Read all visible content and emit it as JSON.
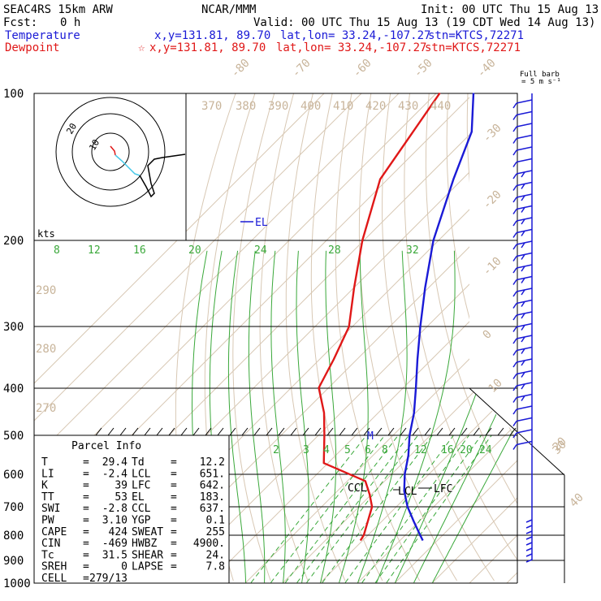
{
  "header": {
    "model": "SEAC4RS 15km ARW",
    "org": "NCAR/MMM",
    "init": "Init: 00 UTC Thu 15 Aug 13",
    "fcst_label": "Fcst:",
    "fcst_value": "0 h",
    "valid": "Valid: 00 UTC Thu 15 Aug 13 (19 CDT Wed 14 Aug 13)",
    "temp_label": "Temperature",
    "temp_xy": "x,y=131.81, 89.70",
    "temp_latlon": "lat,lon= 33.24,-107.27",
    "temp_stn": "stn=KTCS,72271",
    "dew_label": "Dewpoint",
    "dew_xy": "x,y=131.81, 89.70",
    "dew_latlon": "lat,lon= 33.24,-107.27",
    "dew_stn": "stn=KTCS,72271",
    "dew_star": "☆"
  },
  "wind_key": {
    "line1": "Full barb",
    "line2": "= 5 m s⁻¹"
  },
  "hodograph": {
    "unit_label": "kts",
    "ring_labels": [
      "10",
      "20"
    ]
  },
  "parcel_info": {
    "title": "Parcel Info",
    "rows": [
      [
        "T",
        "=",
        "29.4",
        "Td",
        "=",
        "12.2"
      ],
      [
        "LI",
        "=",
        "-2.4",
        "LCL",
        "=",
        "651."
      ],
      [
        "K",
        "=",
        "39",
        "LFC",
        "=",
        "642."
      ],
      [
        "TT",
        "=",
        "53",
        "EL",
        "=",
        "183."
      ],
      [
        "SWI",
        "=",
        "-2.8",
        "CCL",
        "=",
        "637."
      ],
      [
        "PW",
        "=",
        "3.10",
        "YGP",
        "=",
        "0.1"
      ],
      [
        "CAPE",
        "=",
        "424",
        "SWEAT",
        "=",
        "255"
      ],
      [
        "CIN",
        "=",
        "-469",
        "HWBZ",
        "=",
        "4900."
      ],
      [
        "Tc",
        "=",
        "31.5",
        "SHEAR",
        "=",
        "24."
      ],
      [
        "SREH",
        "=",
        "0",
        "LAPSE",
        "=",
        "7.8"
      ],
      [
        "CELL",
        "=",
        "279/13",
        "",
        "",
        ""
      ]
    ]
  },
  "chart_data": {
    "type": "line",
    "subtype": "skew-T log-p sounding",
    "pressure_levels": [
      100,
      200,
      300,
      400,
      500,
      600,
      700,
      800,
      900,
      1000
    ],
    "pressure_tick_labels": [
      "100",
      "200",
      "300",
      "400",
      "500",
      "600",
      "700",
      "800",
      "900",
      "1000"
    ],
    "isotherm_labels": [
      "-80",
      "-70",
      "-60",
      "-50",
      "-40",
      "-30",
      "-20",
      "-10",
      "0",
      "10",
      "20",
      "30",
      "40"
    ],
    "theta_labels": [
      "370",
      "380",
      "390",
      "400",
      "410",
      "420",
      "430",
      "440",
      "290",
      "280",
      "270"
    ],
    "mixing_ratio_labels_upper": [
      "8",
      "12",
      "16",
      "20",
      "24",
      "28",
      "32"
    ],
    "mixing_ratio_labels_lower": [
      "2",
      "3",
      "4",
      "5",
      "6",
      "8",
      "12",
      "16",
      "20",
      "24"
    ],
    "series": [
      {
        "name": "Temperature",
        "color": "#1a1ad6",
        "points": [
          {
            "p": 100,
            "t": -80.1
          },
          {
            "p": 120,
            "t": -70.2
          },
          {
            "p": 150,
            "t": -62.4
          },
          {
            "p": 200,
            "t": -51.4
          },
          {
            "p": 250,
            "t": -40.9
          },
          {
            "p": 300,
            "t": -31.8
          },
          {
            "p": 350,
            "t": -23.8
          },
          {
            "p": 400,
            "t": -16.6
          },
          {
            "p": 450,
            "t": -10.4
          },
          {
            "p": 500,
            "t": -5.6
          },
          {
            "p": 550,
            "t": -0.5
          },
          {
            "p": 600,
            "t": 3.5
          },
          {
            "p": 650,
            "t": 7.9
          },
          {
            "p": 700,
            "t": 13.0
          },
          {
            "p": 750,
            "t": 18.6
          },
          {
            "p": 800,
            "t": 24.0
          },
          {
            "p": 820,
            "t": 26.1
          }
        ]
      },
      {
        "name": "Dewpoint",
        "color": "#e01818",
        "points": [
          {
            "p": 100,
            "t": -89.1
          },
          {
            "p": 150,
            "t": -82.0
          },
          {
            "p": 200,
            "t": -70.4
          },
          {
            "p": 250,
            "t": -59.9
          },
          {
            "p": 300,
            "t": -50.9
          },
          {
            "p": 350,
            "t": -46.2
          },
          {
            "p": 400,
            "t": -42.6
          },
          {
            "p": 450,
            "t": -34.5
          },
          {
            "p": 500,
            "t": -28.4
          },
          {
            "p": 570,
            "t": -21.1
          },
          {
            "p": 620,
            "t": -5.2
          },
          {
            "p": 660,
            "t": -0.5
          },
          {
            "p": 700,
            "t": 3.5
          },
          {
            "p": 800,
            "t": 8.9
          },
          {
            "p": 820,
            "t": 9.4
          }
        ]
      }
    ],
    "annotations": [
      "EL",
      "M",
      "CCL",
      "LCL",
      "LFC"
    ],
    "hodograph_inset": true,
    "wind_barbs": true
  }
}
